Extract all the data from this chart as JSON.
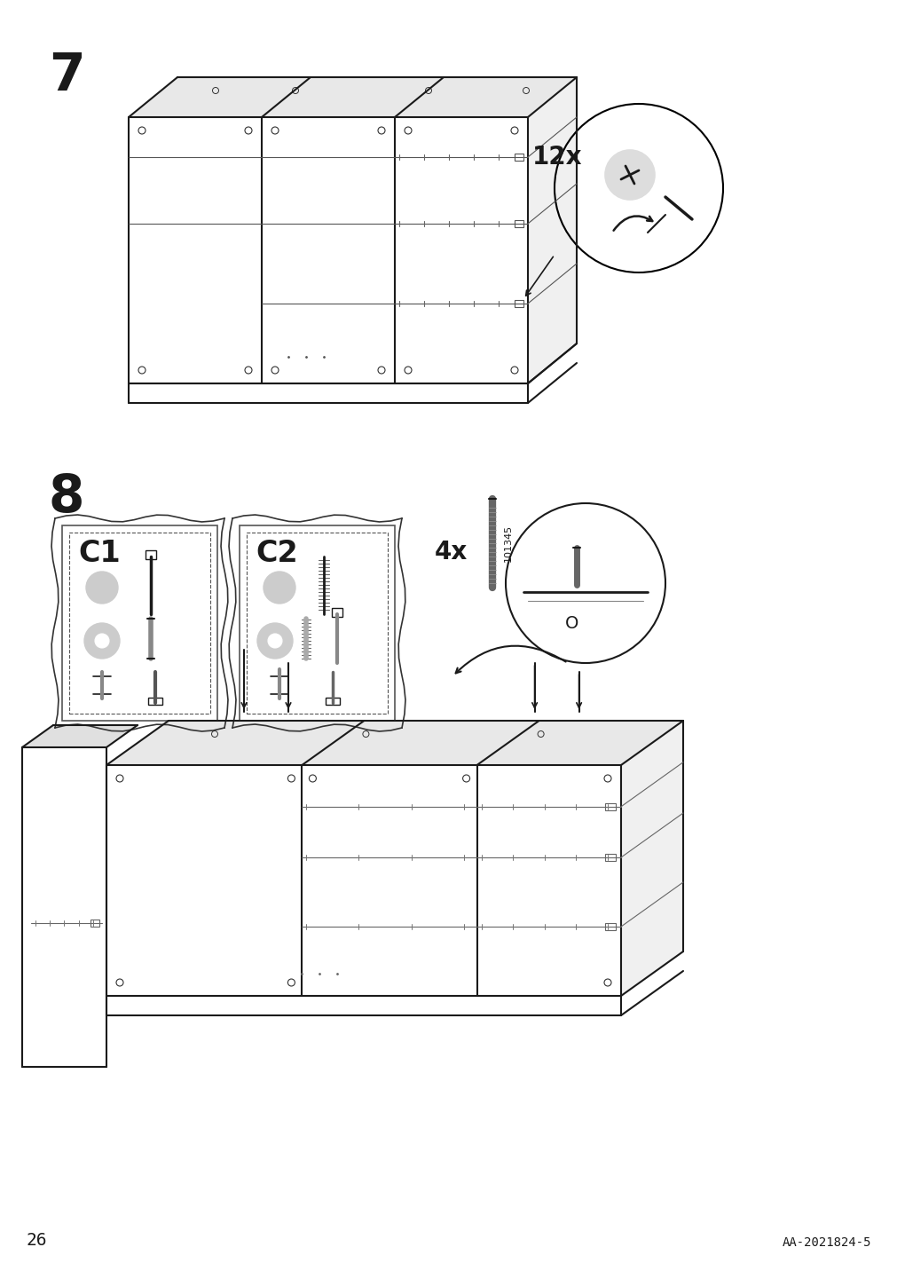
{
  "page_num": "26",
  "doc_id": "AA-2021824-5",
  "step7_label": "7",
  "step8_label": "8",
  "step7_quantity": "12x",
  "step8_quantity": "4x",
  "step8_part_num": "101345",
  "c1_label": "C1",
  "c2_label": "C2",
  "bg_color": "#ffffff",
  "line_color": "#1a1a1a",
  "light_gray": "#888888",
  "dashed_color": "#555555"
}
